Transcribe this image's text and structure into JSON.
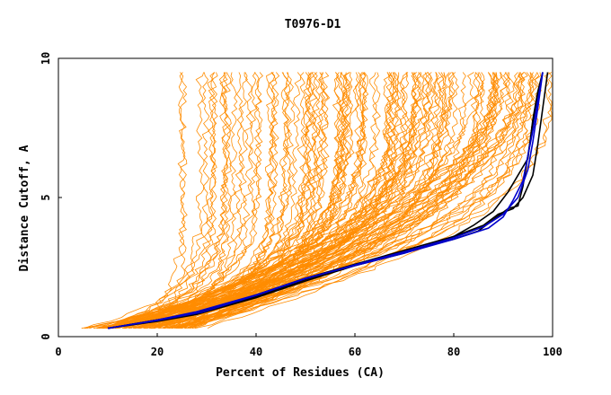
{
  "chart_data": {
    "type": "line",
    "title": "T0976-D1",
    "xlabel": "Percent of Residues (CA)",
    "ylabel": "Distance Cutoff, A",
    "xlim": [
      0,
      100
    ],
    "ylim": [
      0,
      10
    ],
    "x_ticks": [
      "0",
      "20",
      "40",
      "60",
      "80",
      "100"
    ],
    "y_ticks": [
      "0",
      "5",
      "10"
    ],
    "grid": false,
    "legend": "none",
    "colors": {
      "background_models": "#FF8C00",
      "highlight_black": "#000000",
      "highlight_blue": "#0000CC"
    },
    "background_model_count": 130,
    "highlighted_series": [
      {
        "color": "#000000",
        "points": [
          [
            10,
            0.3
          ],
          [
            20,
            0.6
          ],
          [
            29,
            0.9
          ],
          [
            40,
            1.5
          ],
          [
            50,
            2.1
          ],
          [
            60,
            2.6
          ],
          [
            70,
            3.05
          ],
          [
            80,
            3.5
          ],
          [
            85,
            3.8
          ],
          [
            88,
            4.2
          ],
          [
            91,
            4.6
          ],
          [
            93,
            4.7
          ],
          [
            94,
            5.4
          ],
          [
            95,
            6.5
          ],
          [
            96,
            7.6
          ],
          [
            97,
            8.6
          ],
          [
            98,
            9.5
          ]
        ]
      },
      {
        "color": "#000000",
        "points": [
          [
            10,
            0.3
          ],
          [
            20,
            0.6
          ],
          [
            29,
            0.85
          ],
          [
            40,
            1.4
          ],
          [
            50,
            2.0
          ],
          [
            60,
            2.55
          ],
          [
            70,
            3.0
          ],
          [
            80,
            3.6
          ],
          [
            84,
            4.0
          ],
          [
            88,
            4.5
          ],
          [
            91,
            5.2
          ],
          [
            93,
            5.8
          ],
          [
            95,
            6.4
          ],
          [
            96,
            7.8
          ],
          [
            97,
            8.8
          ],
          [
            98,
            9.5
          ]
        ]
      },
      {
        "color": "#000000",
        "points": [
          [
            10,
            0.3
          ],
          [
            20,
            0.55
          ],
          [
            28,
            0.8
          ],
          [
            40,
            1.45
          ],
          [
            50,
            2.05
          ],
          [
            60,
            2.6
          ],
          [
            70,
            3.1
          ],
          [
            80,
            3.6
          ],
          [
            86,
            4.0
          ],
          [
            89,
            4.4
          ],
          [
            92,
            4.6
          ],
          [
            94,
            5.0
          ],
          [
            96,
            5.8
          ],
          [
            97,
            6.9
          ],
          [
            98,
            8.2
          ],
          [
            99,
            9.5
          ]
        ]
      },
      {
        "color": "#0000CC",
        "points": [
          [
            10,
            0.3
          ],
          [
            20,
            0.6
          ],
          [
            28,
            0.9
          ],
          [
            40,
            1.5
          ],
          [
            50,
            2.1
          ],
          [
            60,
            2.55
          ],
          [
            70,
            3.0
          ],
          [
            80,
            3.5
          ],
          [
            87,
            3.9
          ],
          [
            90,
            4.3
          ],
          [
            92,
            4.9
          ],
          [
            94,
            5.6
          ],
          [
            95,
            6.5
          ],
          [
            96,
            7.4
          ],
          [
            97,
            8.5
          ],
          [
            98,
            9.5
          ]
        ]
      },
      {
        "color": "#0000CC",
        "points": [
          [
            10,
            0.3
          ],
          [
            20,
            0.58
          ],
          [
            29,
            0.88
          ],
          [
            40,
            1.48
          ],
          [
            50,
            2.08
          ],
          [
            60,
            2.58
          ],
          [
            70,
            3.05
          ],
          [
            80,
            3.55
          ],
          [
            86,
            3.95
          ],
          [
            90,
            4.4
          ],
          [
            93,
            5.0
          ],
          [
            95,
            6.0
          ],
          [
            96,
            7.0
          ],
          [
            97,
            8.2
          ],
          [
            98,
            9.5
          ]
        ]
      }
    ]
  }
}
